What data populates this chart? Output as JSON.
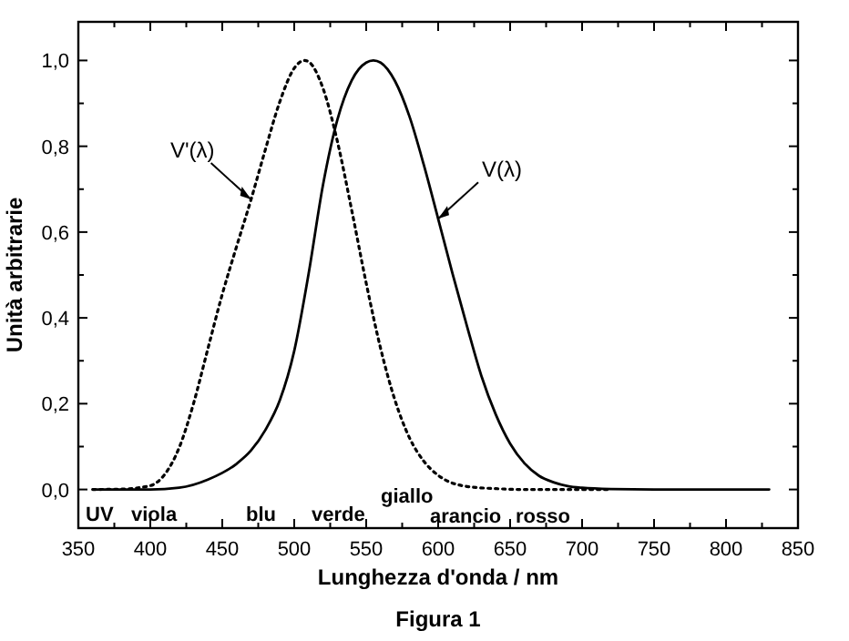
{
  "chart_data": {
    "type": "line",
    "xlabel": "Lunghezza d'onda / nm",
    "ylabel": "Unità arbitrarie",
    "xlim": [
      350,
      850
    ],
    "ylim": [
      -0.09,
      1.09
    ],
    "xticks": [
      350,
      {
        "value": 375,
        "label": null
      },
      400,
      {
        "value": 425,
        "label": null
      },
      450,
      {
        "value": 475,
        "label": null
      },
      500,
      {
        "value": 525,
        "label": null
      },
      550,
      {
        "value": 575,
        "label": null
      },
      600,
      {
        "value": 625,
        "label": null
      },
      650,
      {
        "value": 675,
        "label": null
      },
      700,
      {
        "value": 725,
        "label": null
      },
      750,
      {
        "value": 775,
        "label": null
      },
      800,
      {
        "value": 825,
        "label": null
      },
      850
    ],
    "yticks": [
      {
        "value": 0,
        "label": "0,0"
      },
      {
        "value": 0.1,
        "label": null
      },
      {
        "value": 0.2,
        "label": "0,2"
      },
      {
        "value": 0.3,
        "label": null
      },
      {
        "value": 0.4,
        "label": "0,4"
      },
      {
        "value": 0.5,
        "label": null
      },
      {
        "value": 0.6,
        "label": "0,6"
      },
      {
        "value": 0.7,
        "label": null
      },
      {
        "value": 0.8,
        "label": "0,8"
      },
      {
        "value": 0.9,
        "label": null
      },
      {
        "value": 1,
        "label": "1,0"
      }
    ],
    "grid": false,
    "marker": "none",
    "series": [
      {
        "color": "#000000",
        "line_style": "dotted",
        "x": [
          360,
          380,
          400,
          410,
          420,
          430,
          440,
          450,
          460,
          470,
          480,
          490,
          500,
          507,
          510,
          520,
          530,
          540,
          550,
          560,
          570,
          580,
          590,
          600,
          620,
          640,
          660,
          700,
          720
        ],
        "values": [
          0,
          0.001,
          0.009,
          0.035,
          0.097,
          0.2,
          0.328,
          0.455,
          0.567,
          0.676,
          0.793,
          0.904,
          0.982,
          1.0,
          0.997,
          0.935,
          0.811,
          0.65,
          0.481,
          0.329,
          0.208,
          0.121,
          0.066,
          0.033,
          0.007,
          0.002,
          0,
          0,
          0
        ]
      },
      {
        "color": "#000000",
        "line_style": "solid",
        "x": [
          360,
          380,
          400,
          420,
          440,
          460,
          470,
          480,
          490,
          500,
          510,
          520,
          530,
          540,
          550,
          555,
          560,
          570,
          580,
          590,
          600,
          610,
          620,
          630,
          640,
          650,
          660,
          670,
          680,
          690,
          700,
          720,
          750,
          830
        ],
        "values": [
          0,
          0,
          0,
          0.004,
          0.023,
          0.06,
          0.091,
          0.139,
          0.208,
          0.323,
          0.503,
          0.71,
          0.862,
          0.954,
          0.995,
          1.0,
          0.995,
          0.952,
          0.87,
          0.757,
          0.631,
          0.503,
          0.381,
          0.265,
          0.175,
          0.107,
          0.061,
          0.032,
          0.017,
          0.008,
          0.004,
          0.001,
          0,
          0
        ]
      }
    ],
    "annotations": [
      {
        "text": "V'(λ)",
        "x": 470,
        "y": 0.676
      },
      {
        "text": "V(λ)",
        "x": 600,
        "y": 0.631
      },
      "UV",
      "viola",
      "blu",
      "verde",
      "giallo",
      "arancio",
      "rosso",
      "Figura 1"
    ]
  }
}
